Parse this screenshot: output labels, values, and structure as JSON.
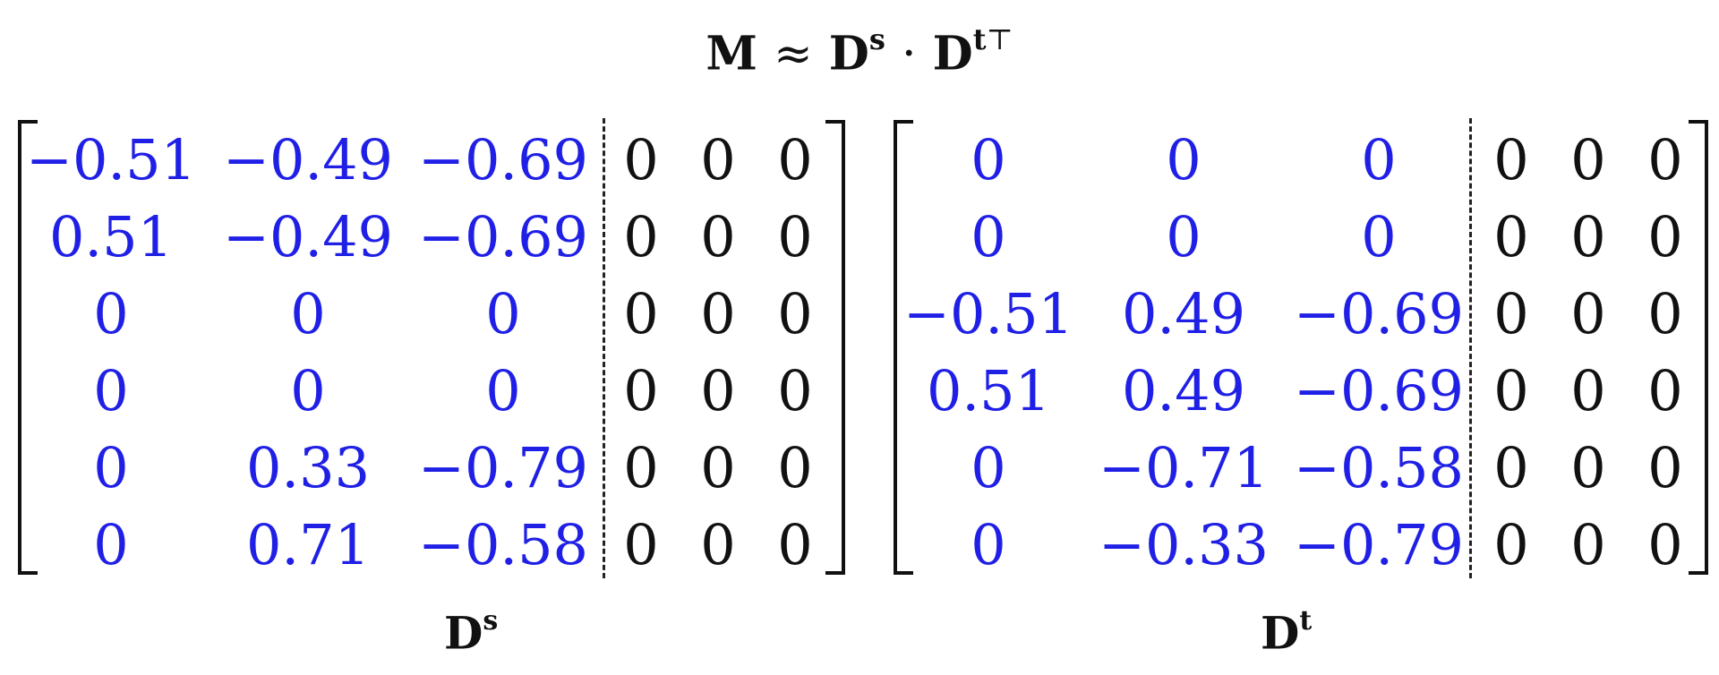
{
  "equation": {
    "lhs": "M",
    "approx": "≈",
    "d": "D",
    "s_sup": "s",
    "dot": "·",
    "t_sup": "t",
    "transpose": "⊤"
  },
  "colors": {
    "value_blue": "#1f1fe6",
    "value_black": "#111111"
  },
  "matrices": [
    {
      "label_base": "D",
      "label_sup": "s",
      "blue_cols": 3,
      "rows": [
        [
          "−0.51",
          "−0.49",
          "−0.69",
          "0",
          "0",
          "0"
        ],
        [
          "0.51",
          "−0.49",
          "−0.69",
          "0",
          "0",
          "0"
        ],
        [
          "0",
          "0",
          "0",
          "0",
          "0",
          "0"
        ],
        [
          "0",
          "0",
          "0",
          "0",
          "0",
          "0"
        ],
        [
          "0",
          "0.33",
          "−0.79",
          "0",
          "0",
          "0"
        ],
        [
          "0",
          "0.71",
          "−0.58",
          "0",
          "0",
          "0"
        ]
      ]
    },
    {
      "label_base": "D",
      "label_sup": "t",
      "blue_cols": 3,
      "rows": [
        [
          "0",
          "0",
          "0",
          "0",
          "0",
          "0"
        ],
        [
          "0",
          "0",
          "0",
          "0",
          "0",
          "0"
        ],
        [
          "−0.51",
          "0.49",
          "−0.69",
          "0",
          "0",
          "0"
        ],
        [
          "0.51",
          "0.49",
          "−0.69",
          "0",
          "0",
          "0"
        ],
        [
          "0",
          "−0.71",
          "−0.58",
          "0",
          "0",
          "0"
        ],
        [
          "0",
          "−0.33",
          "−0.79",
          "0",
          "0",
          "0"
        ]
      ]
    }
  ]
}
